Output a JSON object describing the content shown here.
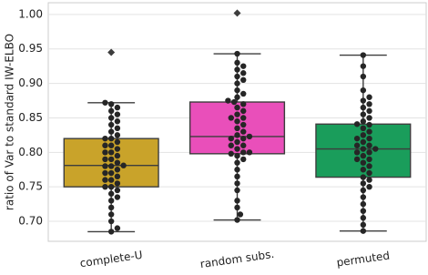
{
  "chart_data": {
    "type": "box",
    "ylabel": "ratio of Var to standard IW-ELBO",
    "categories": [
      "complete-U",
      "random subs.",
      "permuted"
    ],
    "boxes": [
      {
        "color": "#c9a32a",
        "min": 0.685,
        "q1": 0.75,
        "median": 0.781,
        "q3": 0.82,
        "max": 0.872,
        "outliers": [
          0.945
        ],
        "points": [
          0.685,
          0.69,
          0.7,
          0.71,
          0.72,
          0.73,
          0.735,
          0.74,
          0.745,
          0.75,
          0.75,
          0.755,
          0.76,
          0.76,
          0.765,
          0.77,
          0.77,
          0.775,
          0.78,
          0.78,
          0.781,
          0.785,
          0.79,
          0.79,
          0.795,
          0.8,
          0.8,
          0.805,
          0.81,
          0.81,
          0.815,
          0.82,
          0.82,
          0.825,
          0.83,
          0.835,
          0.84,
          0.845,
          0.85,
          0.855,
          0.86,
          0.865,
          0.87,
          0.872
        ]
      },
      {
        "color": "#e94fba",
        "min": 0.702,
        "q1": 0.798,
        "median": 0.823,
        "q3": 0.873,
        "max": 0.943,
        "outliers": [
          1.002
        ],
        "points": [
          0.702,
          0.71,
          0.72,
          0.73,
          0.745,
          0.755,
          0.765,
          0.775,
          0.785,
          0.79,
          0.795,
          0.798,
          0.8,
          0.8,
          0.805,
          0.81,
          0.81,
          0.815,
          0.82,
          0.82,
          0.823,
          0.825,
          0.83,
          0.835,
          0.84,
          0.845,
          0.85,
          0.85,
          0.855,
          0.86,
          0.865,
          0.87,
          0.873,
          0.875,
          0.88,
          0.885,
          0.89,
          0.9,
          0.905,
          0.91,
          0.915,
          0.92,
          0.925,
          0.93,
          0.943
        ]
      },
      {
        "color": "#1a9d5b",
        "min": 0.686,
        "q1": 0.764,
        "median": 0.805,
        "q3": 0.841,
        "max": 0.941,
        "outliers": [],
        "points": [
          0.686,
          0.695,
          0.705,
          0.715,
          0.725,
          0.735,
          0.745,
          0.75,
          0.755,
          0.76,
          0.764,
          0.77,
          0.775,
          0.78,
          0.785,
          0.79,
          0.79,
          0.795,
          0.8,
          0.8,
          0.805,
          0.805,
          0.81,
          0.81,
          0.815,
          0.82,
          0.82,
          0.825,
          0.83,
          0.835,
          0.84,
          0.841,
          0.845,
          0.85,
          0.855,
          0.86,
          0.865,
          0.87,
          0.875,
          0.88,
          0.89,
          0.91,
          0.925,
          0.941
        ]
      }
    ],
    "ylim": [
      0.671,
      1.017
    ],
    "yticks": [
      {
        "value": 0.7,
        "label": "0.70"
      },
      {
        "value": 0.75,
        "label": "0.75"
      },
      {
        "value": 0.8,
        "label": "0.80"
      },
      {
        "value": 0.85,
        "label": "0.85"
      },
      {
        "value": 0.9,
        "label": "0.90"
      },
      {
        "value": 0.95,
        "label": "0.95"
      },
      {
        "value": 1.0,
        "label": "1.00"
      }
    ],
    "grid": true
  }
}
